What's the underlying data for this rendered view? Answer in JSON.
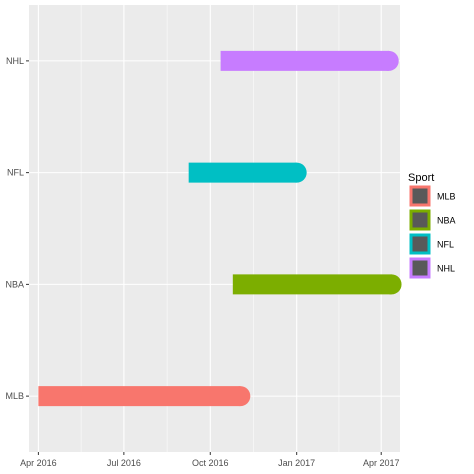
{
  "chart_data": {
    "type": "bar",
    "orientation": "horizontal",
    "title": "",
    "xlabel": "",
    "ylabel": "",
    "categories": [
      "MLB",
      "NBA",
      "NFL",
      "NHL"
    ],
    "series": [
      {
        "name": "MLB",
        "start": "2016-04-01",
        "end": "2016-11-02",
        "color": "#F8766D"
      },
      {
        "name": "NBA",
        "start": "2016-10-25",
        "end": "2017-04-12",
        "color": "#7CAE00"
      },
      {
        "name": "NFL",
        "start": "2016-09-08",
        "end": "2017-01-01",
        "color": "#00BFC4"
      },
      {
        "name": "NHL",
        "start": "2016-10-12",
        "end": "2017-04-09",
        "color": "#C77CFF"
      }
    ],
    "x_ticks": [
      {
        "value": "2016-04-01",
        "label": "Apr 2016"
      },
      {
        "value": "2016-07-01",
        "label": "Jul 2016"
      },
      {
        "value": "2016-10-01",
        "label": "Oct 2016"
      },
      {
        "value": "2017-01-01",
        "label": "Jan 2017"
      },
      {
        "value": "2017-04-01",
        "label": "Apr 2017"
      }
    ],
    "xlim": [
      "2016-03-22",
      "2017-04-21"
    ],
    "grid": true,
    "legend": {
      "title": "Sport",
      "placement": "right",
      "entries": [
        "MLB",
        "NBA",
        "NFL",
        "NHL"
      ]
    }
  }
}
